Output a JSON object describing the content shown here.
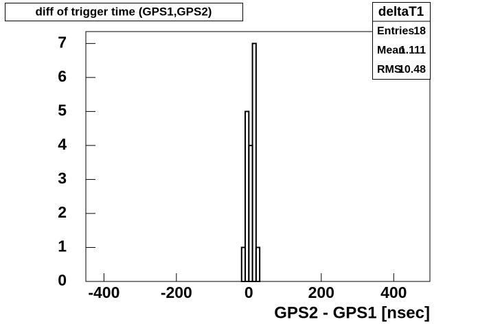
{
  "chart_data": {
    "type": "histogram",
    "title": "diff of trigger time (GPS1,GPS2)",
    "xlabel": "GPS2 - GPS1 [nsec]",
    "bins": [
      -20,
      -10,
      0,
      10,
      20,
      30
    ],
    "counts": [
      1,
      5,
      4,
      7,
      1
    ],
    "color": "#000000",
    "xlim": [
      -450,
      500
    ],
    "xticks": [
      -400,
      -200,
      0,
      200,
      400
    ],
    "ylim": [
      0,
      7.35
    ],
    "yticks": [
      0,
      1,
      2,
      3,
      4,
      5,
      6,
      7
    ],
    "stats": {
      "title": "deltaT1",
      "rows": [
        [
          "Entries",
          18
        ],
        [
          "Mean",
          1.111
        ],
        [
          "RMS",
          10.48
        ]
      ]
    }
  }
}
